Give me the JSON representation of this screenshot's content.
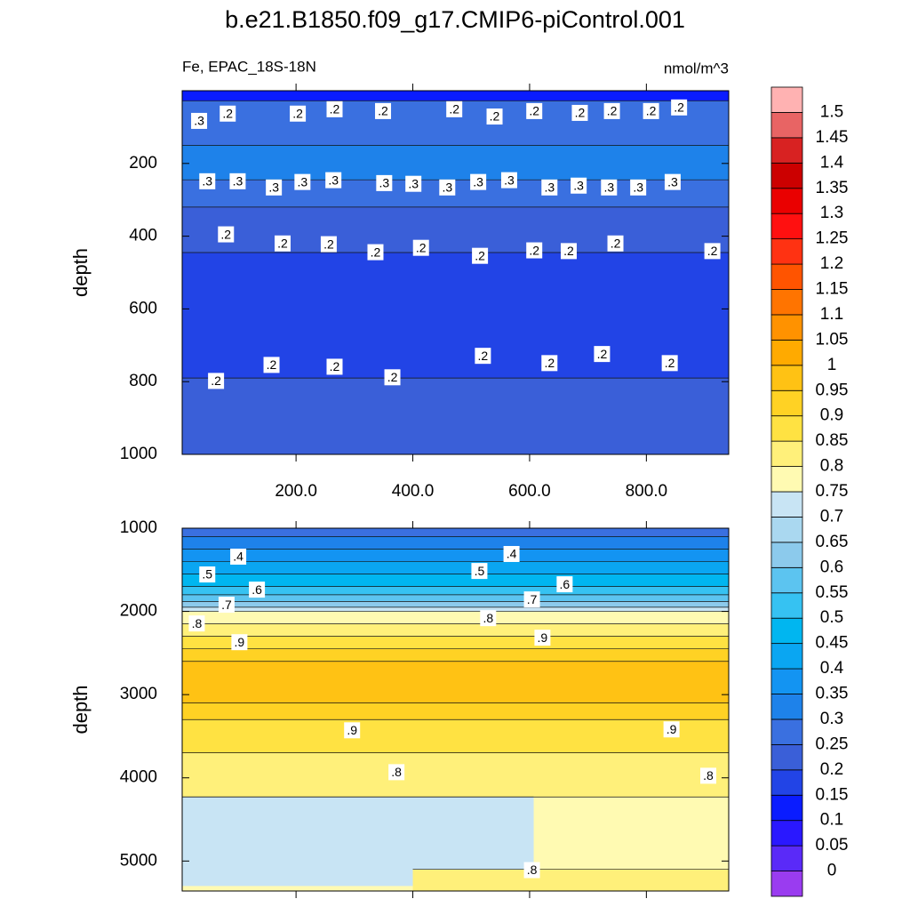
{
  "chart_data": {
    "type": "contour",
    "title": "b.e21.B1850.f09_g17.CMIP6-piControl.001",
    "subtitle_left": "Fe, EPAC_18S-18N",
    "subtitle_right": "nmol/m^3",
    "panels": [
      {
        "ylabel": "depth",
        "xlim": [
          5,
          941
        ],
        "ylim": [
          0,
          1000
        ],
        "yticks": [
          200,
          400,
          600,
          800,
          1000
        ],
        "xticks": [
          {
            "value": 200,
            "label": "200.0"
          },
          {
            "value": 400,
            "label": "400.0"
          },
          {
            "value": 600,
            "label": "600.0"
          },
          {
            "value": 800,
            "label": "800.0"
          }
        ],
        "bands": [
          {
            "top": 0,
            "bottom": 28,
            "value": 0.125
          },
          {
            "top": 28,
            "bottom": 150,
            "value": 0.275
          },
          {
            "top": 150,
            "bottom": 245,
            "value": 0.325
          },
          {
            "top": 245,
            "bottom": 320,
            "value": 0.275
          },
          {
            "top": 320,
            "bottom": 445,
            "value": 0.225
          },
          {
            "top": 445,
            "bottom": 790,
            "value": 0.175
          },
          {
            "top": 790,
            "bottom": 1000,
            "value": 0.225
          }
        ],
        "contour_labels": [
          {
            "text": ".3",
            "x": 34,
            "y": 83
          },
          {
            "text": ".2",
            "x": 83,
            "y": 63
          },
          {
            "text": ".2",
            "x": 203,
            "y": 63
          },
          {
            "text": ".2",
            "x": 266,
            "y": 51
          },
          {
            "text": ".2",
            "x": 349,
            "y": 56
          },
          {
            "text": ".2",
            "x": 471,
            "y": 51
          },
          {
            "text": ".2",
            "x": 540,
            "y": 71
          },
          {
            "text": ".2",
            "x": 608,
            "y": 56
          },
          {
            "text": ".2",
            "x": 686,
            "y": 61
          },
          {
            "text": ".2",
            "x": 741,
            "y": 56
          },
          {
            "text": ".2",
            "x": 808,
            "y": 56
          },
          {
            "text": ".2",
            "x": 856,
            "y": 46
          },
          {
            "text": ".3",
            "x": 48,
            "y": 249
          },
          {
            "text": ".3",
            "x": 100,
            "y": 249
          },
          {
            "text": ".3",
            "x": 162,
            "y": 266
          },
          {
            "text": ".3",
            "x": 211,
            "y": 251
          },
          {
            "text": ".3",
            "x": 264,
            "y": 246
          },
          {
            "text": ".3",
            "x": 351,
            "y": 254
          },
          {
            "text": ".3",
            "x": 401,
            "y": 256
          },
          {
            "text": ".3",
            "x": 459,
            "y": 266
          },
          {
            "text": ".3",
            "x": 512,
            "y": 251
          },
          {
            "text": ".3",
            "x": 565,
            "y": 246
          },
          {
            "text": ".3",
            "x": 634,
            "y": 266
          },
          {
            "text": ".3",
            "x": 684,
            "y": 261
          },
          {
            "text": ".3",
            "x": 736,
            "y": 266
          },
          {
            "text": ".3",
            "x": 786,
            "y": 266
          },
          {
            "text": ".3",
            "x": 845,
            "y": 251
          },
          {
            "text": ".2",
            "x": 80,
            "y": 395
          },
          {
            "text": ".2",
            "x": 177,
            "y": 420
          },
          {
            "text": ".2",
            "x": 256,
            "y": 422
          },
          {
            "text": ".2",
            "x": 336,
            "y": 444
          },
          {
            "text": ".2",
            "x": 414,
            "y": 432
          },
          {
            "text": ".2",
            "x": 515,
            "y": 454
          },
          {
            "text": ".2",
            "x": 608,
            "y": 439
          },
          {
            "text": ".2",
            "x": 667,
            "y": 441
          },
          {
            "text": ".2",
            "x": 747,
            "y": 420
          },
          {
            "text": ".2",
            "x": 913,
            "y": 441
          },
          {
            "text": ".2",
            "x": 63,
            "y": 798
          },
          {
            "text": ".2",
            "x": 158,
            "y": 754
          },
          {
            "text": ".2",
            "x": 266,
            "y": 759
          },
          {
            "text": ".2",
            "x": 365,
            "y": 788
          },
          {
            "text": ".2",
            "x": 520,
            "y": 729
          },
          {
            "text": ".2",
            "x": 634,
            "y": 749
          },
          {
            "text": ".2",
            "x": 724,
            "y": 724
          },
          {
            "text": ".2",
            "x": 840,
            "y": 749
          }
        ]
      },
      {
        "ylabel": "depth",
        "xlim": [
          5,
          941
        ],
        "ylim": [
          1000,
          5360
        ],
        "yticks": [
          1000,
          2000,
          3000,
          4000,
          5000
        ],
        "xticks": [
          200,
          400,
          600,
          800
        ],
        "show_xtick_labels": false,
        "bands": [
          {
            "top": 1000,
            "bottom": 1100,
            "value": 0.275
          },
          {
            "top": 1100,
            "bottom": 1250,
            "value": 0.325
          },
          {
            "top": 1250,
            "bottom": 1400,
            "value": 0.375
          },
          {
            "top": 1400,
            "bottom": 1550,
            "value": 0.425
          },
          {
            "top": 1550,
            "bottom": 1700,
            "value": 0.475
          },
          {
            "top": 1700,
            "bottom": 1800,
            "value": 0.525
          },
          {
            "top": 1800,
            "bottom": 1880,
            "value": 0.575
          },
          {
            "top": 1880,
            "bottom": 1950,
            "value": 0.625
          },
          {
            "top": 1950,
            "bottom": 2000,
            "value": 0.725
          },
          {
            "top": 2000,
            "bottom": 2150,
            "value": 0.775
          },
          {
            "top": 2150,
            "bottom": 2300,
            "value": 0.825
          },
          {
            "top": 2300,
            "bottom": 2450,
            "value": 0.875
          },
          {
            "top": 2450,
            "bottom": 2600,
            "value": 0.925
          },
          {
            "top": 2600,
            "bottom": 3100,
            "value": 0.975
          },
          {
            "top": 3100,
            "bottom": 3300,
            "value": 0.925
          },
          {
            "top": 3300,
            "bottom": 3700,
            "value": 0.875
          },
          {
            "top": 3700,
            "bottom": 4230,
            "value": 0.825
          },
          {
            "top": 4230,
            "bottom": 5360,
            "value": 0.775
          },
          {
            "top": 4230,
            "bottom": 5300,
            "value": 0.725,
            "x0": 5,
            "x1": 607
          },
          {
            "top": 5100,
            "bottom": 5360,
            "value": 0.825,
            "x0": 400,
            "x1": 941
          }
        ],
        "contour_labels": [
          {
            "text": ".4",
            "x": 101,
            "y": 1342
          },
          {
            "text": ".5",
            "x": 48,
            "y": 1556
          },
          {
            "text": ".6",
            "x": 133,
            "y": 1738
          },
          {
            "text": ".7",
            "x": 81,
            "y": 1920
          },
          {
            "text": ".8",
            "x": 30,
            "y": 2145
          },
          {
            "text": ".9",
            "x": 103,
            "y": 2370
          },
          {
            "text": ".5",
            "x": 514,
            "y": 1514
          },
          {
            "text": ".4",
            "x": 569,
            "y": 1310
          },
          {
            "text": ".6",
            "x": 660,
            "y": 1674
          },
          {
            "text": ".7",
            "x": 604,
            "y": 1856
          },
          {
            "text": ".8",
            "x": 529,
            "y": 2081
          },
          {
            "text": ".9",
            "x": 622,
            "y": 2316
          },
          {
            "text": ".9",
            "x": 296,
            "y": 3429
          },
          {
            "text": ".9",
            "x": 843,
            "y": 3418
          },
          {
            "text": ".8",
            "x": 372,
            "y": 3932
          },
          {
            "text": ".8",
            "x": 906,
            "y": 3975
          },
          {
            "text": ".8",
            "x": 604,
            "y": 5109
          }
        ]
      }
    ],
    "colorbar": {
      "levels": [
        0,
        0.05,
        0.1,
        0.15,
        0.2,
        0.25,
        0.3,
        0.35,
        0.4,
        0.45,
        0.5,
        0.55,
        0.6,
        0.65,
        0.7,
        0.75,
        0.8,
        0.85,
        0.9,
        0.95,
        1,
        1.05,
        1.1,
        1.15,
        1.2,
        1.25,
        1.3,
        1.35,
        1.4,
        1.45,
        1.5
      ],
      "colors": [
        "#9a3cf0",
        "#5a2af8",
        "#2a18ff",
        "#0a1cff",
        "#2244e6",
        "#3a5fd8",
        "#3a70e0",
        "#1e82ea",
        "#1394f2",
        "#0aa6f2",
        "#00b6f0",
        "#36c2f2",
        "#5cc4f0",
        "#8ccaec",
        "#aad8f0",
        "#c8e4f4",
        "#fffab2",
        "#fff07a",
        "#ffe242",
        "#ffd224",
        "#ffc214",
        "#ffaa00",
        "#ff9200",
        "#ff7400",
        "#ff5400",
        "#ff3212",
        "#ff1010",
        "#ea0000",
        "#cc0000",
        "#d82222",
        "#e86464",
        "#ffb2b2"
      ]
    }
  }
}
